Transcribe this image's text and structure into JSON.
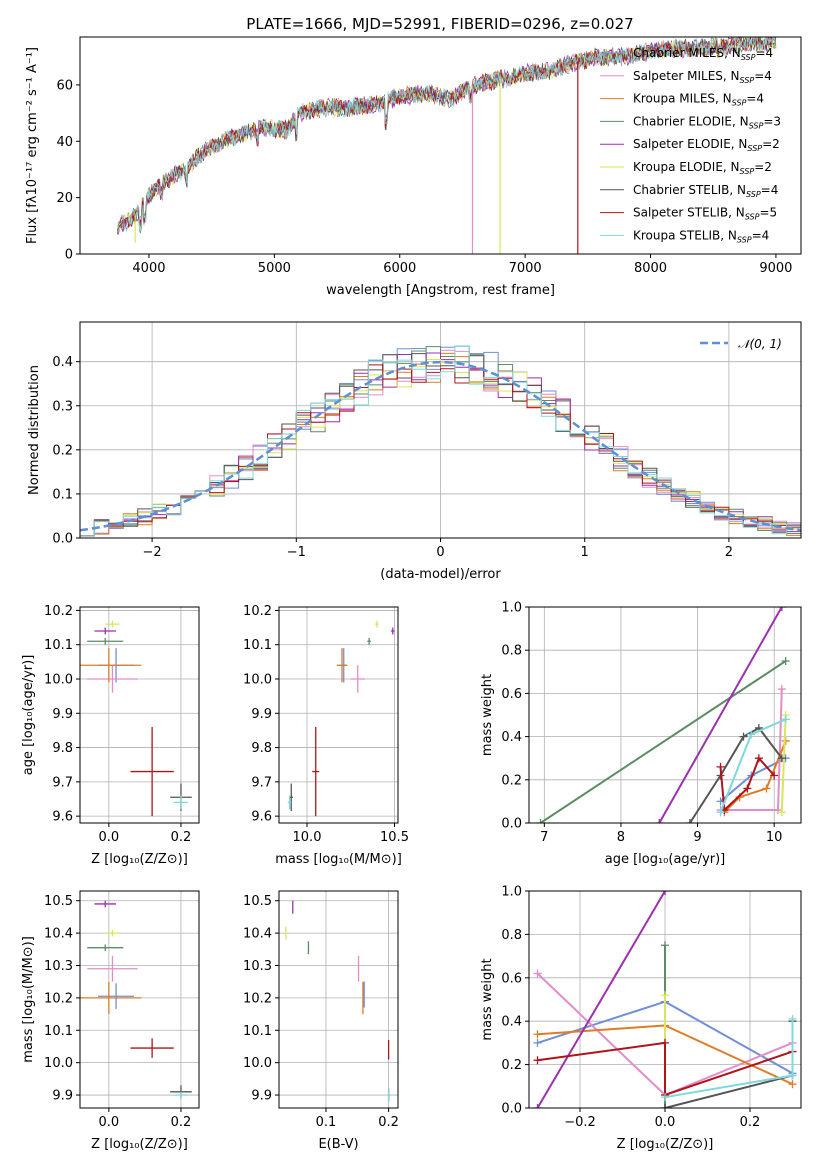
{
  "figure": {
    "title": "PLATE=1666, MJD=52991, FIBERID=0296, z=0.027"
  },
  "series_colors": {
    "Chabrier MILES": "#6f8fd8",
    "Salpeter MILES": "#e38cc9",
    "Kroupa MILES": "#e07b26",
    "Chabrier ELODIE": "#5b8c65",
    "Salpeter ELODIE": "#9e2fb0",
    "Kroupa ELODIE": "#d8e65a",
    "Chabrier STELIB": "#555555",
    "Salpeter STELIB": "#b0141a",
    "Kroupa STELIB": "#7fd8dc"
  },
  "legend_spectrum": [
    {
      "pre": "Chabrier MILES, N",
      "sub": "SSP",
      "post": "=4"
    },
    {
      "pre": "Salpeter MILES, N",
      "sub": "SSP",
      "post": "=4"
    },
    {
      "pre": "Kroupa MILES, N",
      "sub": "SSP",
      "post": "=4"
    },
    {
      "pre": "Chabrier ELODIE, N",
      "sub": "SSP",
      "post": "=3"
    },
    {
      "pre": "Salpeter ELODIE, N",
      "sub": "SSP",
      "post": "=2"
    },
    {
      "pre": "Kroupa ELODIE, N",
      "sub": "SSP",
      "post": "=2"
    },
    {
      "pre": "Chabrier STELIB, N",
      "sub": "SSP",
      "post": "=4"
    },
    {
      "pre": "Salpeter STELIB, N",
      "sub": "SSP",
      "post": "=5"
    },
    {
      "pre": "Kroupa STELIB, N",
      "sub": "SSP",
      "post": "=4"
    }
  ],
  "chart_data": [
    {
      "id": "spectrum",
      "type": "line",
      "xlabel": "wavelength [Angstrom, rest frame]",
      "ylabel": "Flux [fλ10⁻¹⁷ erg cm⁻² s⁻¹ A⁻¹]",
      "xlim": [
        3450,
        9200
      ],
      "ylim": [
        0,
        77
      ],
      "xticks": [
        4000,
        5000,
        6000,
        7000,
        8000,
        9000
      ],
      "yticks": [
        0,
        20,
        40,
        60
      ],
      "grid": false,
      "legend_position": "top-right",
      "continuum": {
        "x": [
          3750,
          3850,
          3900,
          3950,
          4000,
          4100,
          4200,
          4300,
          4400,
          4500,
          4700,
          4900,
          5100,
          5200,
          5400,
          5600,
          5800,
          6000,
          6200,
          6400,
          6600,
          6800,
          7000,
          7200,
          7400,
          7600,
          7800,
          8000,
          8200,
          8400,
          8600,
          8800,
          9000
        ],
        "y": [
          10,
          12,
          14,
          17,
          21,
          25,
          28,
          30,
          35,
          38,
          42,
          45,
          44,
          50,
          52,
          52,
          53,
          56,
          57,
          55,
          60,
          62,
          64,
          65,
          68,
          70,
          70,
          72,
          73,
          73,
          74,
          75,
          75
        ]
      },
      "dropouts": [
        {
          "series": "Salpeter MILES",
          "x": 6580,
          "y": 0
        },
        {
          "series": "Kroupa ELODIE",
          "x": 6800,
          "y": 0
        },
        {
          "series": "Salpeter STELIB",
          "x": 7420,
          "y": 0
        },
        {
          "series": "Kroupa ELODIE",
          "x": 3890,
          "y": 4
        }
      ]
    },
    {
      "id": "residuals",
      "type": "line",
      "xlabel": "(data-model)/error",
      "ylabel": "Normed distribution",
      "xlim": [
        -2.5,
        2.5
      ],
      "ylim": [
        0,
        0.49
      ],
      "xticks": [
        -2,
        -1,
        0,
        1,
        2
      ],
      "xtick_labels": [
        "−2",
        "−1",
        "0",
        "1",
        "2"
      ],
      "yticks": [
        0.0,
        0.1,
        0.2,
        0.3,
        0.4
      ],
      "grid": true,
      "legend_position": "top-right",
      "legend_label": "𝒩(0, 1)",
      "normal_curve": {
        "mean": 0,
        "sigma": 1,
        "style": "dashed",
        "color": "#5b8fd6"
      },
      "histogram_bins": {
        "start": -2.5,
        "width": 0.1
      }
    },
    {
      "id": "age-vs-Z",
      "type": "scatter",
      "xlabel": "Z [log₁₀(Z/Z⊙)]",
      "ylabel": "age  [log₁₀(age/yr)]",
      "xlim": [
        -0.08,
        0.25
      ],
      "ylim": [
        9.58,
        10.21
      ],
      "xticks": [
        0.0,
        0.2
      ],
      "xtick_labels": [
        "0.0",
        "0.2"
      ],
      "yticks": [
        9.6,
        9.7,
        9.8,
        9.9,
        10.0,
        10.1,
        10.2
      ],
      "grid": true,
      "points": [
        {
          "series": "Chabrier MILES",
          "x": 0.02,
          "y": 10.04,
          "xerr": 0.05,
          "yerr": 0.05
        },
        {
          "series": "Salpeter MILES",
          "x": 0.01,
          "y": 10.0,
          "xerr": 0.07,
          "yerr": 0.04
        },
        {
          "series": "Kroupa MILES",
          "x": 0.0,
          "y": 10.04,
          "xerr": 0.09,
          "yerr": 0.05
        },
        {
          "series": "Chabrier ELODIE",
          "x": -0.01,
          "y": 10.11,
          "xerr": 0.05,
          "yerr": 0.01
        },
        {
          "series": "Salpeter ELODIE",
          "x": -0.01,
          "y": 10.14,
          "xerr": 0.03,
          "yerr": 0.01
        },
        {
          "series": "Kroupa ELODIE",
          "x": 0.01,
          "y": 10.16,
          "xerr": 0.02,
          "yerr": 0.01
        },
        {
          "series": "Chabrier STELIB",
          "x": 0.2,
          "y": 9.655,
          "xerr": 0.03,
          "yerr": 0.04
        },
        {
          "series": "Salpeter STELIB",
          "x": 0.12,
          "y": 9.73,
          "xerr": 0.06,
          "yerr": 0.13
        },
        {
          "series": "Kroupa STELIB",
          "x": 0.2,
          "y": 9.64,
          "xerr": 0.02,
          "yerr": 0.02
        }
      ]
    },
    {
      "id": "age-vs-mass",
      "type": "scatter",
      "xlabel": "mass [log₁₀(M/M⊙)]",
      "ylabel": "",
      "xlim": [
        9.84,
        10.52
      ],
      "ylim": [
        9.58,
        10.21
      ],
      "xticks": [
        10.0,
        10.5
      ],
      "xtick_labels": [
        "10.0",
        "10.5"
      ],
      "yticks": [
        9.6,
        9.7,
        9.8,
        9.9,
        10.0,
        10.1,
        10.2
      ],
      "grid": true,
      "points": [
        {
          "series": "Chabrier MILES",
          "x": 10.21,
          "y": 10.04,
          "xerr": 0.02,
          "yerr": 0.05
        },
        {
          "series": "Salpeter MILES",
          "x": 10.29,
          "y": 10.0,
          "xerr": 0.04,
          "yerr": 0.04
        },
        {
          "series": "Kroupa MILES",
          "x": 10.2,
          "y": 10.04,
          "xerr": 0.03,
          "yerr": 0.05
        },
        {
          "series": "Chabrier ELODIE",
          "x": 10.355,
          "y": 10.11,
          "xerr": 0.01,
          "yerr": 0.01
        },
        {
          "series": "Salpeter ELODIE",
          "x": 10.49,
          "y": 10.14,
          "xerr": 0.01,
          "yerr": 0.01
        },
        {
          "series": "Kroupa ELODIE",
          "x": 10.4,
          "y": 10.16,
          "xerr": 0.01,
          "yerr": 0.01
        },
        {
          "series": "Chabrier STELIB",
          "x": 9.91,
          "y": 9.655,
          "xerr": 0.01,
          "yerr": 0.04
        },
        {
          "series": "Salpeter STELIB",
          "x": 10.05,
          "y": 9.73,
          "xerr": 0.02,
          "yerr": 0.13
        },
        {
          "series": "Kroupa STELIB",
          "x": 9.9,
          "y": 9.64,
          "xerr": 0.01,
          "yerr": 0.02
        }
      ]
    },
    {
      "id": "weight-vs-age",
      "type": "line",
      "xlabel": "age  [log₁₀(age/yr)]",
      "ylabel": "mass weight",
      "xlim": [
        6.8,
        10.35
      ],
      "ylim": [
        0,
        1.0
      ],
      "xticks": [
        7,
        8,
        9,
        10
      ],
      "yticks": [
        0.0,
        0.2,
        0.4,
        0.6,
        0.8,
        1.0
      ],
      "grid": true,
      "series": [
        {
          "name": "Chabrier MILES",
          "x": [
            9.3,
            9.7,
            10.15
          ],
          "y": [
            0.1,
            0.22,
            0.3
          ]
        },
        {
          "name": "Salpeter MILES",
          "x": [
            9.3,
            10.05,
            10.1
          ],
          "y": [
            0.06,
            0.06,
            0.62
          ]
        },
        {
          "name": "Kroupa MILES",
          "x": [
            9.35,
            9.55,
            9.9,
            10.15
          ],
          "y": [
            0.05,
            0.12,
            0.16,
            0.38
          ]
        },
        {
          "name": "Chabrier ELODIE",
          "x": [
            6.95,
            10.15
          ],
          "y": [
            0.0,
            0.75
          ]
        },
        {
          "name": "Salpeter ELODIE",
          "x": [
            8.5,
            10.1
          ],
          "y": [
            0.0,
            1.0
          ]
        },
        {
          "name": "Kroupa ELODIE",
          "x": [
            10.1,
            10.15
          ],
          "y": [
            0.05,
            0.5
          ]
        },
        {
          "name": "Chabrier STELIB",
          "x": [
            8.9,
            9.3,
            9.6,
            9.8,
            10.1
          ],
          "y": [
            0.0,
            0.22,
            0.4,
            0.44,
            0.3
          ]
        },
        {
          "name": "Salpeter STELIB",
          "x": [
            9.3,
            9.35,
            9.65,
            9.8,
            10.0
          ],
          "y": [
            0.26,
            0.06,
            0.16,
            0.3,
            0.22
          ]
        },
        {
          "name": "Kroupa STELIB",
          "x": [
            9.3,
            9.7,
            10.15
          ],
          "y": [
            0.05,
            0.41,
            0.48
          ]
        }
      ]
    },
    {
      "id": "mass-vs-Z",
      "type": "scatter",
      "xlabel": "Z [log₁₀(Z/Z⊙)]",
      "ylabel": "mass [log₁₀(M/M⊙)]",
      "xlim": [
        -0.08,
        0.25
      ],
      "ylim": [
        9.86,
        10.53
      ],
      "xticks": [
        0.0,
        0.2
      ],
      "xtick_labels": [
        "0.0",
        "0.2"
      ],
      "yticks": [
        9.9,
        10.0,
        10.1,
        10.2,
        10.3,
        10.4,
        10.5
      ],
      "grid": true,
      "points": [
        {
          "series": "Chabrier MILES",
          "x": 0.02,
          "y": 10.205,
          "xerr": 0.05,
          "yerr": 0.04
        },
        {
          "series": "Salpeter MILES",
          "x": 0.01,
          "y": 10.29,
          "xerr": 0.07,
          "yerr": 0.04
        },
        {
          "series": "Kroupa MILES",
          "x": 0.0,
          "y": 10.2,
          "xerr": 0.09,
          "yerr": 0.05
        },
        {
          "series": "Chabrier ELODIE",
          "x": -0.01,
          "y": 10.355,
          "xerr": 0.05,
          "yerr": 0.01
        },
        {
          "series": "Salpeter ELODIE",
          "x": -0.01,
          "y": 10.49,
          "xerr": 0.03,
          "yerr": 0.01
        },
        {
          "series": "Kroupa ELODIE",
          "x": 0.01,
          "y": 10.4,
          "xerr": 0.02,
          "yerr": 0.01
        },
        {
          "series": "Chabrier STELIB",
          "x": 0.2,
          "y": 9.91,
          "xerr": 0.03,
          "yerr": 0.02
        },
        {
          "series": "Salpeter STELIB",
          "x": 0.12,
          "y": 10.045,
          "xerr": 0.06,
          "yerr": 0.03
        },
        {
          "series": "Kroupa STELIB",
          "x": 0.2,
          "y": 9.9,
          "xerr": 0.02,
          "yerr": 0.01
        }
      ]
    },
    {
      "id": "mass-vs-ebv",
      "type": "scatter",
      "xlabel": "E(B-V)",
      "ylabel": "",
      "xlim": [
        0.025,
        0.215
      ],
      "ylim": [
        9.86,
        10.53
      ],
      "xticks": [
        0.1,
        0.2
      ],
      "xtick_labels": [
        "0.1",
        "0.2"
      ],
      "yticks": [
        9.9,
        10.0,
        10.1,
        10.2,
        10.3,
        10.4,
        10.5
      ],
      "grid": true,
      "points": [
        {
          "series": "Chabrier MILES",
          "x": 0.161,
          "y": 10.21,
          "yerr": 0.04
        },
        {
          "series": "Salpeter MILES",
          "x": 0.152,
          "y": 10.29,
          "yerr": 0.04
        },
        {
          "series": "Kroupa MILES",
          "x": 0.159,
          "y": 10.2,
          "yerr": 0.05
        },
        {
          "series": "Chabrier ELODIE",
          "x": 0.072,
          "y": 10.355,
          "yerr": 0.02
        },
        {
          "series": "Salpeter ELODIE",
          "x": 0.047,
          "y": 10.48,
          "yerr": 0.02
        },
        {
          "series": "Kroupa ELODIE",
          "x": 0.036,
          "y": 10.4,
          "yerr": 0.02
        },
        {
          "series": "Chabrier STELIB",
          "x": 0.2,
          "y": 9.9,
          "yerr": 0.02
        },
        {
          "series": "Salpeter STELIB",
          "x": 0.2,
          "y": 10.04,
          "yerr": 0.03
        },
        {
          "series": "Kroupa STELIB",
          "x": 0.2,
          "y": 9.9,
          "yerr": 0.02
        }
      ]
    },
    {
      "id": "weight-vs-Z",
      "type": "line",
      "xlabel": "Z [log₁₀(Z/Z⊙)]",
      "ylabel": "mass weight",
      "xlim": [
        -0.32,
        0.32
      ],
      "ylim": [
        0,
        1.0
      ],
      "xticks": [
        -0.2,
        0.0,
        0.2
      ],
      "xtick_labels": [
        "−0.2",
        "0.0",
        "0.2"
      ],
      "yticks": [
        0.0,
        0.2,
        0.4,
        0.6,
        0.8,
        1.0
      ],
      "grid": true,
      "series": [
        {
          "name": "Chabrier MILES",
          "x": [
            -0.3,
            0.0,
            0.3
          ],
          "y": [
            0.3,
            0.49,
            0.16
          ]
        },
        {
          "name": "Salpeter MILES",
          "x": [
            -0.3,
            0.0,
            0.3
          ],
          "y": [
            0.62,
            0.06,
            0.3
          ]
        },
        {
          "name": "Kroupa MILES",
          "x": [
            -0.3,
            0.0,
            0.3
          ],
          "y": [
            0.34,
            0.38,
            0.11
          ]
        },
        {
          "name": "Chabrier ELODIE",
          "x": [
            0.0,
            0.0
          ],
          "y": [
            0.0,
            0.75
          ]
        },
        {
          "name": "Salpeter ELODIE",
          "x": [
            -0.3,
            0.0
          ],
          "y": [
            0.0,
            1.0
          ]
        },
        {
          "name": "Kroupa ELODIE",
          "x": [
            0.0,
            0.0
          ],
          "y": [
            0.05,
            0.52
          ]
        },
        {
          "name": "Chabrier STELIB",
          "x": [
            0.0,
            0.3,
            0.3
          ],
          "y": [
            0.0,
            0.15,
            0.4
          ]
        },
        {
          "name": "Salpeter STELIB",
          "x": [
            -0.3,
            0.0,
            0.0,
            0.3
          ],
          "y": [
            0.22,
            0.3,
            0.06,
            0.26
          ]
        },
        {
          "name": "Kroupa STELIB",
          "x": [
            0.0,
            0.3,
            0.3
          ],
          "y": [
            0.05,
            0.15,
            0.41
          ]
        }
      ]
    }
  ]
}
